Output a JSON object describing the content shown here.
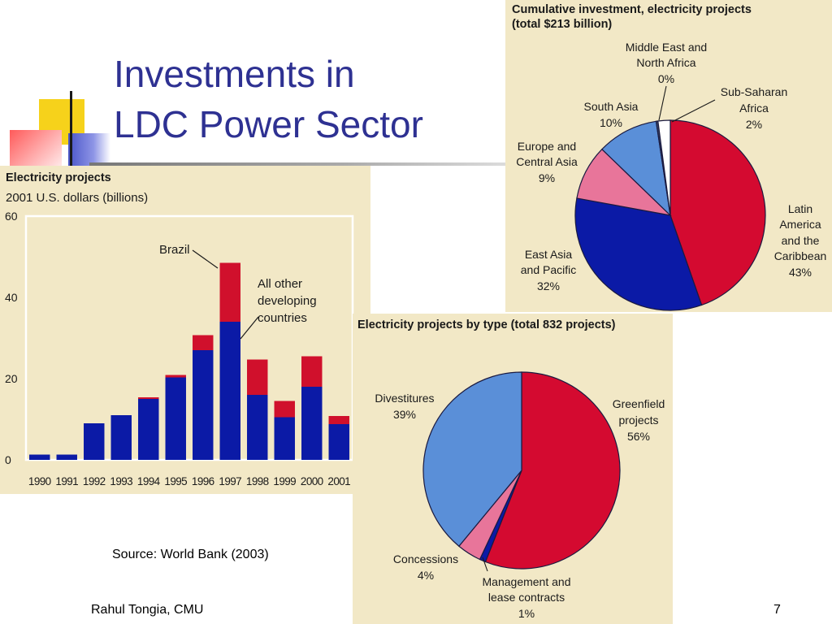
{
  "slide": {
    "title_line1": "Investments in",
    "title_line2": "LDC Power Sector",
    "source": "Source: World Bank (2003)",
    "author": "Rahul Tongia, CMU",
    "page_number": "7"
  },
  "chart_data": [
    {
      "type": "bar",
      "title": "Electricity projects",
      "subtitle": "2001 U.S. dollars (billions)",
      "categories": [
        "1990",
        "1991",
        "1992",
        "1993",
        "1994",
        "1995",
        "1996",
        "1997",
        "1998",
        "1999",
        "2000",
        "2001"
      ],
      "series": [
        {
          "name": "All other developing countries",
          "color": "#0b1aa6",
          "values": [
            1.3,
            1.3,
            9,
            11,
            15,
            20.3,
            27,
            34,
            16,
            10.5,
            18,
            8.8
          ]
        },
        {
          "name": "Brazil",
          "color": "#d0102c",
          "values": [
            0,
            0,
            0,
            0,
            0.4,
            0.6,
            3.7,
            14.5,
            8.7,
            4,
            7.5,
            2
          ]
        }
      ],
      "stacked": true,
      "ylim": [
        0,
        60
      ],
      "yticks": [
        0,
        20,
        40,
        60
      ],
      "grid": false,
      "annotations": [
        {
          "text": "Brazil",
          "points_to": "Brazil 1997"
        },
        {
          "text_lines": [
            "All other",
            "developing",
            "countries"
          ],
          "points_to": "All other developing countries 1997"
        }
      ]
    },
    {
      "type": "pie",
      "title_lines": [
        "Cumulative investment, electricity projects",
        "(total $213 billion)"
      ],
      "slices": [
        {
          "label_lines": [
            "Latin",
            "America",
            "and the",
            "Caribbean"
          ],
          "pct_label": "43%",
          "value": 43,
          "color": "#d40a30"
        },
        {
          "label_lines": [
            "East Asia",
            "and Pacific"
          ],
          "pct_label": "32%",
          "value": 32,
          "color": "#0b1aa6"
        },
        {
          "label_lines": [
            "Europe and",
            "Central Asia"
          ],
          "pct_label": "9%",
          "value": 9,
          "color": "#e8759a"
        },
        {
          "label_lines": [
            "South Asia"
          ],
          "pct_label": "10%",
          "value": 10,
          "color": "#5a8fd8"
        },
        {
          "label_lines": [
            "Middle East and",
            "North Africa"
          ],
          "pct_label": "0%",
          "value": 0.3,
          "color": "#3a4a6a"
        },
        {
          "label_lines": [
            "Sub-Saharan",
            "Africa"
          ],
          "pct_label": "2%",
          "value": 2,
          "color": "#ffffff"
        }
      ]
    },
    {
      "type": "pie",
      "title_lines": [
        "Electricity projects by type (total 832 projects)"
      ],
      "slices": [
        {
          "label_lines": [
            "Greenfield",
            "projects"
          ],
          "pct_label": "56%",
          "value": 56,
          "color": "#d40a30"
        },
        {
          "label_lines": [
            "Management and",
            "lease contracts"
          ],
          "pct_label": "1%",
          "value": 1,
          "color": "#0b1aa6"
        },
        {
          "label_lines": [
            "Concessions"
          ],
          "pct_label": "4%",
          "value": 4,
          "color": "#e8759a"
        },
        {
          "label_lines": [
            "Divestitures"
          ],
          "pct_label": "39%",
          "value": 39,
          "color": "#5a8fd8"
        }
      ]
    }
  ]
}
